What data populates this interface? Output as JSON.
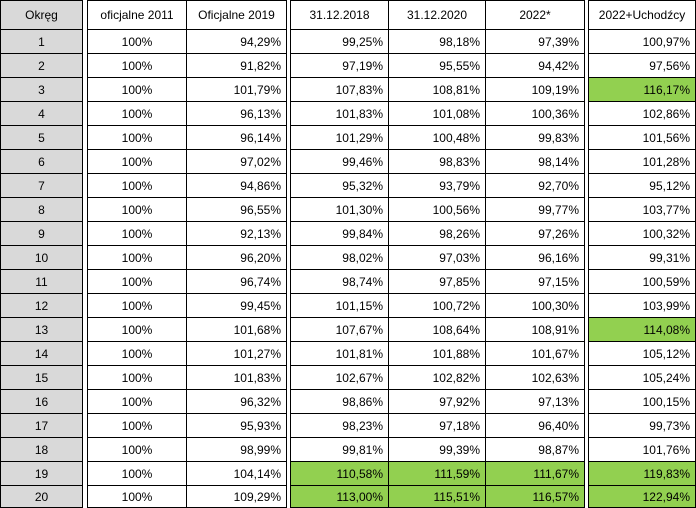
{
  "columns": [
    "Okręg",
    "oficjalne 2011",
    "Oficjalne 2019",
    "31.12.2018",
    "31.12.2020",
    "2022*",
    "2022+Uchodźcy"
  ],
  "highlight_color": "#92d050",
  "header_color": "#d9d9d9",
  "rows": [
    {
      "okreg": "1",
      "c2011": "100%",
      "c2019": "94,29%",
      "c2018": "99,25%",
      "c2020": "98,18%",
      "c2022": "97,39%",
      "cuch": "100,97%",
      "hl_mid": false,
      "hl_last": false
    },
    {
      "okreg": "2",
      "c2011": "100%",
      "c2019": "91,82%",
      "c2018": "97,19%",
      "c2020": "95,55%",
      "c2022": "94,42%",
      "cuch": "97,56%",
      "hl_mid": false,
      "hl_last": false
    },
    {
      "okreg": "3",
      "c2011": "100%",
      "c2019": "101,79%",
      "c2018": "107,83%",
      "c2020": "108,81%",
      "c2022": "109,19%",
      "cuch": "116,17%",
      "hl_mid": false,
      "hl_last": true
    },
    {
      "okreg": "4",
      "c2011": "100%",
      "c2019": "96,13%",
      "c2018": "101,83%",
      "c2020": "101,08%",
      "c2022": "100,36%",
      "cuch": "102,86%",
      "hl_mid": false,
      "hl_last": false
    },
    {
      "okreg": "5",
      "c2011": "100%",
      "c2019": "96,14%",
      "c2018": "101,29%",
      "c2020": "100,48%",
      "c2022": "99,83%",
      "cuch": "101,56%",
      "hl_mid": false,
      "hl_last": false
    },
    {
      "okreg": "6",
      "c2011": "100%",
      "c2019": "97,02%",
      "c2018": "99,46%",
      "c2020": "98,83%",
      "c2022": "98,14%",
      "cuch": "101,28%",
      "hl_mid": false,
      "hl_last": false
    },
    {
      "okreg": "7",
      "c2011": "100%",
      "c2019": "94,86%",
      "c2018": "95,32%",
      "c2020": "93,79%",
      "c2022": "92,70%",
      "cuch": "95,12%",
      "hl_mid": false,
      "hl_last": false
    },
    {
      "okreg": "8",
      "c2011": "100%",
      "c2019": "96,55%",
      "c2018": "101,30%",
      "c2020": "100,56%",
      "c2022": "99,77%",
      "cuch": "103,77%",
      "hl_mid": false,
      "hl_last": false
    },
    {
      "okreg": "9",
      "c2011": "100%",
      "c2019": "92,13%",
      "c2018": "99,84%",
      "c2020": "98,26%",
      "c2022": "97,26%",
      "cuch": "100,32%",
      "hl_mid": false,
      "hl_last": false
    },
    {
      "okreg": "10",
      "c2011": "100%",
      "c2019": "96,20%",
      "c2018": "98,02%",
      "c2020": "97,03%",
      "c2022": "96,16%",
      "cuch": "99,31%",
      "hl_mid": false,
      "hl_last": false
    },
    {
      "okreg": "11",
      "c2011": "100%",
      "c2019": "96,74%",
      "c2018": "98,74%",
      "c2020": "97,85%",
      "c2022": "97,15%",
      "cuch": "100,59%",
      "hl_mid": false,
      "hl_last": false
    },
    {
      "okreg": "12",
      "c2011": "100%",
      "c2019": "99,45%",
      "c2018": "101,15%",
      "c2020": "100,72%",
      "c2022": "100,30%",
      "cuch": "103,99%",
      "hl_mid": false,
      "hl_last": false
    },
    {
      "okreg": "13",
      "c2011": "100%",
      "c2019": "101,68%",
      "c2018": "107,67%",
      "c2020": "108,64%",
      "c2022": "108,91%",
      "cuch": "114,08%",
      "hl_mid": false,
      "hl_last": true
    },
    {
      "okreg": "14",
      "c2011": "100%",
      "c2019": "101,27%",
      "c2018": "101,81%",
      "c2020": "101,88%",
      "c2022": "101,67%",
      "cuch": "105,12%",
      "hl_mid": false,
      "hl_last": false
    },
    {
      "okreg": "15",
      "c2011": "100%",
      "c2019": "101,83%",
      "c2018": "102,67%",
      "c2020": "102,82%",
      "c2022": "102,63%",
      "cuch": "105,24%",
      "hl_mid": false,
      "hl_last": false
    },
    {
      "okreg": "16",
      "c2011": "100%",
      "c2019": "96,32%",
      "c2018": "98,86%",
      "c2020": "97,92%",
      "c2022": "97,13%",
      "cuch": "100,15%",
      "hl_mid": false,
      "hl_last": false
    },
    {
      "okreg": "17",
      "c2011": "100%",
      "c2019": "95,93%",
      "c2018": "98,23%",
      "c2020": "97,18%",
      "c2022": "96,40%",
      "cuch": "99,73%",
      "hl_mid": false,
      "hl_last": false
    },
    {
      "okreg": "18",
      "c2011": "100%",
      "c2019": "98,99%",
      "c2018": "99,81%",
      "c2020": "99,39%",
      "c2022": "98,87%",
      "cuch": "101,76%",
      "hl_mid": false,
      "hl_last": false
    },
    {
      "okreg": "19",
      "c2011": "100%",
      "c2019": "104,14%",
      "c2018": "110,58%",
      "c2020": "111,59%",
      "c2022": "111,67%",
      "cuch": "119,83%",
      "hl_mid": true,
      "hl_last": true
    },
    {
      "okreg": "20",
      "c2011": "100%",
      "c2019": "109,29%",
      "c2018": "113,00%",
      "c2020": "115,51%",
      "c2022": "116,57%",
      "cuch": "122,94%",
      "hl_mid": true,
      "hl_last": true
    }
  ]
}
